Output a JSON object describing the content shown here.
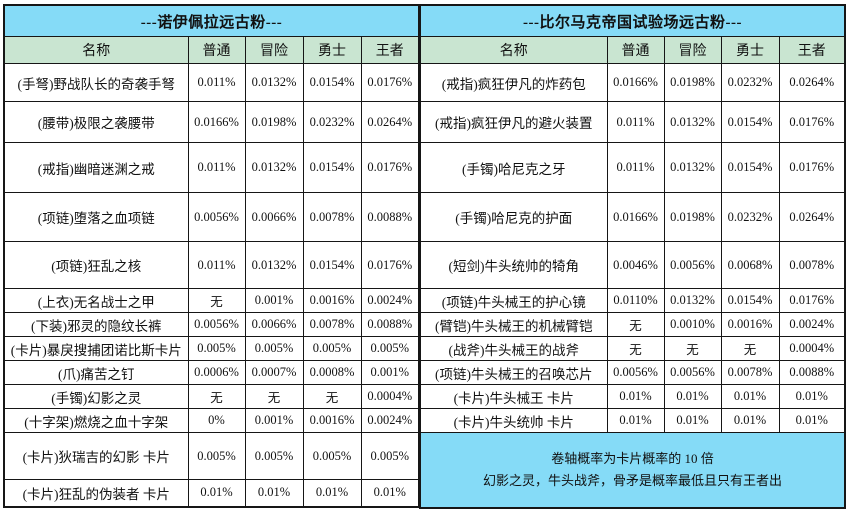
{
  "left_table": {
    "title": "---诺伊佩拉远古粉---",
    "headers": [
      "名称",
      "普通",
      "冒险",
      "勇士",
      "王者"
    ],
    "rows": [
      {
        "name": "(手弩)野战队长的奇袭手弩",
        "values": [
          "0.011%",
          "0.0132%",
          "0.0154%",
          "0.0176%"
        ]
      },
      {
        "name": "(腰带)极限之袭腰带",
        "values": [
          "0.0166%",
          "0.0198%",
          "0.0232%",
          "0.0264%"
        ]
      },
      {
        "name": "(戒指)幽暗迷渊之戒",
        "values": [
          "0.011%",
          "0.0132%",
          "0.0154%",
          "0.0176%"
        ]
      },
      {
        "name": "(项链)堕落之血项链",
        "values": [
          "0.0056%",
          "0.0066%",
          "0.0078%",
          "0.0088%"
        ]
      },
      {
        "name": "(项链)狂乱之核",
        "values": [
          "0.011%",
          "0.0132%",
          "0.0154%",
          "0.0176%"
        ]
      },
      {
        "name": "(上衣)无名战士之甲",
        "values": [
          "无",
          "0.001%",
          "0.0016%",
          "0.0024%"
        ]
      },
      {
        "name": "(下装)邪灵的隐纹长裤",
        "values": [
          "0.0056%",
          "0.0066%",
          "0.0078%",
          "0.0088%"
        ]
      },
      {
        "name": "(卡片)暴戾搜捕团诺比斯卡片",
        "values": [
          "0.005%",
          "0.005%",
          "0.005%",
          "0.005%"
        ]
      },
      {
        "name": "(爪)痛苦之钉",
        "values": [
          "0.0006%",
          "0.0007%",
          "0.0008%",
          "0.001%"
        ]
      },
      {
        "name": "(手镯)幻影之灵",
        "values": [
          "无",
          "无",
          "无",
          "0.0004%"
        ]
      },
      {
        "name": "(十字架)燃烧之血十字架",
        "values": [
          "0%",
          "0.001%",
          "0.0016%",
          "0.0024%"
        ]
      },
      {
        "name": "(卡片)狄瑞吉的幻影 卡片",
        "values": [
          "0.005%",
          "0.005%",
          "0.005%",
          "0.005%"
        ]
      },
      {
        "name": "(卡片)狂乱的伪装者 卡片",
        "values": [
          "0.01%",
          "0.01%",
          "0.01%",
          "0.01%"
        ]
      }
    ]
  },
  "right_table": {
    "title": "---比尔马克帝国试验场远古粉---",
    "headers": [
      "名称",
      "普通",
      "冒险",
      "勇士",
      "王者"
    ],
    "rows": [
      {
        "name": "(戒指)疯狂伊凡的炸药包",
        "values": [
          "0.0166%",
          "0.0198%",
          "0.0232%",
          "0.0264%"
        ]
      },
      {
        "name": "(戒指)疯狂伊凡的避火装置",
        "values": [
          "0.011%",
          "0.0132%",
          "0.0154%",
          "0.0176%"
        ]
      },
      {
        "name": "(手镯)哈尼克之牙",
        "values": [
          "0.011%",
          "0.0132%",
          "0.0154%",
          "0.0176%"
        ]
      },
      {
        "name": "(手镯)哈尼克的护面",
        "values": [
          "0.0166%",
          "0.0198%",
          "0.0232%",
          "0.0264%"
        ]
      },
      {
        "name": "(短剑)牛头统帅的犄角",
        "values": [
          "0.0046%",
          "0.0056%",
          "0.0068%",
          "0.0078%"
        ]
      },
      {
        "name": "(项链)牛头械王的护心镜",
        "values": [
          "0.0110%",
          "0.0132%",
          "0.0154%",
          "0.0176%"
        ]
      },
      {
        "name": "(臂铠)牛头械王的机械臂铠",
        "values": [
          "无",
          "0.0010%",
          "0.0016%",
          "0.0024%"
        ]
      },
      {
        "name": "(战斧)牛头械王的战斧",
        "values": [
          "无",
          "无",
          "无",
          "0.0004%"
        ]
      },
      {
        "name": "(项链)牛头械王的召唤芯片",
        "values": [
          "0.0056%",
          "0.0056%",
          "0.0078%",
          "0.0088%"
        ]
      },
      {
        "name": "(卡片)牛头械王 卡片",
        "values": [
          "0.01%",
          "0.01%",
          "0.01%",
          "0.01%"
        ]
      },
      {
        "name": "(卡片)牛头统帅 卡片",
        "values": [
          "0.01%",
          "0.01%",
          "0.01%",
          "0.01%"
        ]
      }
    ],
    "footer_note": [
      "卷轴概率为卡片概率的 10 倍",
      "幻影之灵，牛头战斧，骨矛是概率最低且只有王者出"
    ]
  },
  "colors": {
    "title_blue": "#85dbf7",
    "header_green": "#c9e5d1",
    "border": "#161616"
  }
}
